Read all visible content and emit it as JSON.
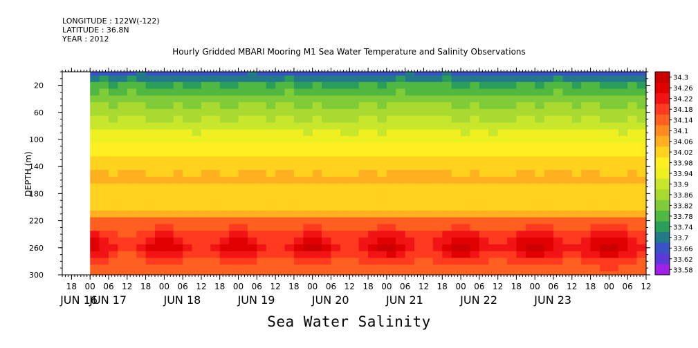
{
  "header": {
    "longitude": "LONGITUDE : 122W(-122)",
    "latitude": "LATITUDE : 36.8N",
    "year": "YEAR : 2012"
  },
  "chart_data": {
    "type": "heatmap",
    "title": "Hourly Gridded MBARI Mooring M1 Sea Water Temperature and Salinity Observations",
    "bottom_title": "Sea Water Salinity",
    "ylabel": "DEPTH (m)",
    "ylim": [
      300,
      0
    ],
    "y_ticks": [
      20,
      60,
      100,
      140,
      180,
      220,
      260,
      300
    ],
    "x_hour_ticks": [
      "18",
      "00",
      "06",
      "12",
      "18",
      "00",
      "06",
      "12",
      "18",
      "00",
      "06",
      "12",
      "18",
      "00",
      "06",
      "12",
      "18",
      "00",
      "06",
      "12",
      "18",
      "00",
      "06",
      "12",
      "18",
      "00",
      "06",
      "12",
      "18",
      "00",
      "06",
      "12"
    ],
    "x_day_labels": [
      "JUN 16",
      "JUN 17",
      "JUN 18",
      "JUN 19",
      "JUN 20",
      "JUN 21",
      "JUN 22",
      "JUN 23"
    ],
    "xlim_hours": [
      -9,
      180
    ],
    "data_start_hour": 0,
    "colorbar": {
      "levels": [
        "34.3",
        "34.26",
        "34.22",
        "34.18",
        "34.14",
        "34.1",
        "34.06",
        "34.02",
        "33.98",
        "33.94",
        "33.9",
        "33.86",
        "33.82",
        "33.78",
        "33.74",
        "33.7",
        "33.66",
        "33.62",
        "33.58"
      ],
      "colors": [
        "#cc0000",
        "#e00000",
        "#f21414",
        "#ff3a1e",
        "#ff6020",
        "#ff8a1e",
        "#ffb020",
        "#ffd21e",
        "#ffee22",
        "#eef022",
        "#c8e62c",
        "#a8da30",
        "#80cc38",
        "#50b840",
        "#2a9e58",
        "#227a88",
        "#3a52c8",
        "#5a3ad8",
        "#a020e8"
      ]
    },
    "profile_depth_m": [
      8,
      20,
      40,
      60,
      80,
      100,
      120,
      140,
      160,
      180,
      200,
      210,
      220,
      240,
      260,
      280,
      300
    ],
    "profile_salinity": [
      33.7,
      33.76,
      33.82,
      33.86,
      33.9,
      33.95,
      33.99,
      34.03,
      34.05,
      34.02,
      34.0,
      34.06,
      34.12,
      34.18,
      34.22,
      34.16,
      34.14
    ]
  }
}
